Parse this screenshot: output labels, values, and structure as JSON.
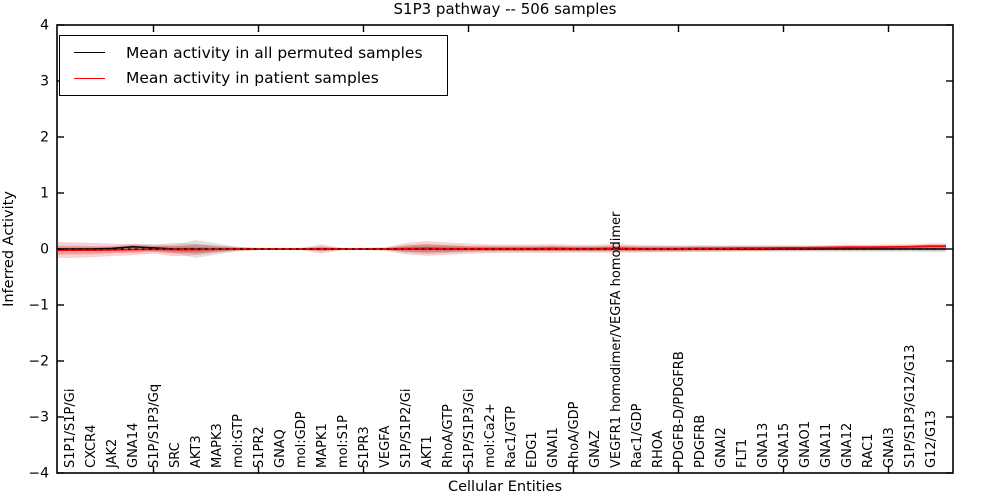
{
  "chart_data": {
    "type": "line",
    "title": "S1P3 pathway -- 506 samples",
    "xlabel": "Cellular Entities",
    "ylabel": "Inferred Activity",
    "ylim": [
      -4,
      4
    ],
    "yticks": [
      4,
      3,
      2,
      1,
      0,
      -1,
      -2,
      -3,
      -4
    ],
    "grid": false,
    "legend": {
      "position": "upper left",
      "entries": [
        {
          "label": "Mean activity in all permuted samples",
          "color": "#000000"
        },
        {
          "label": "Mean activity in patient samples",
          "color": "#ff0000"
        }
      ]
    },
    "categories": [
      "S1P1/S1P/Gi",
      "CXCR4",
      "JAK2",
      "GNA14",
      "S1P/S1P3/Gq",
      "SRC",
      "AKT3",
      "MAPK3",
      "mol:GTP",
      "S1PR2",
      "GNAQ",
      "mol:GDP",
      "MAPK1",
      "mol:S1P",
      "S1PR3",
      "VEGFA",
      "S1P/S1P2/Gi",
      "AKT1",
      "RhoA/GTP",
      "S1P/S1P3/Gi",
      "mol:Ca2+",
      "Rac1/GTP",
      "EDG1",
      "GNAI1",
      "RhoA/GDP",
      "GNAZ",
      "VEGFR1 homodimer/VEGFA homodimer",
      "Rac1/GDP",
      "RHOA",
      "PDGFB-D/PDGFRB",
      "PDGFRB",
      "GNAI2",
      "FLT1",
      "GNA13",
      "GNA15",
      "GNAO1",
      "GNA11",
      "GNA12",
      "RAC1",
      "GNAI3",
      "S1P/S1P3/G12/G13",
      "G12/G13"
    ],
    "series": [
      {
        "name": "Mean activity in all permuted samples",
        "color": "#000000",
        "values": [
          0,
          0,
          0.01,
          0.04,
          0.02,
          0,
          0,
          0,
          0,
          0,
          0,
          0,
          0,
          0,
          0,
          0,
          0,
          0,
          0,
          0,
          0,
          0,
          0,
          0,
          0,
          0,
          0,
          0,
          0,
          0,
          0,
          0,
          0,
          0,
          0,
          0,
          0,
          0,
          0,
          0,
          0,
          0
        ]
      },
      {
        "name": "Mean activity in patient samples",
        "color": "#ff0000",
        "values": [
          -0.02,
          -0.02,
          -0.015,
          -0.01,
          -0.005,
          -0.01,
          -0.01,
          -0.005,
          0,
          0,
          0,
          0,
          0,
          0,
          0,
          0,
          0.005,
          0.01,
          0.005,
          0.005,
          0.005,
          0.005,
          0.005,
          0.01,
          0.005,
          0.005,
          0.01,
          0.005,
          0.005,
          0.005,
          0.01,
          0.01,
          0.015,
          0.015,
          0.02,
          0.02,
          0.025,
          0.03,
          0.03,
          0.035,
          0.04,
          0.05
        ]
      }
    ],
    "bands": [
      {
        "name": "permuted-std",
        "color": "#777777",
        "half_widths": [
          0.03,
          0.03,
          0.04,
          0.05,
          0.06,
          0.07,
          0.16,
          0.1,
          0.04,
          0.02,
          0.015,
          0.015,
          0.03,
          0.015,
          0.015,
          0.02,
          0.06,
          0.09,
          0.07,
          0.05,
          0.05,
          0.05,
          0.05,
          0.05,
          0.05,
          0.05,
          0.05,
          0.05,
          0.05,
          0.05,
          0.05,
          0.05,
          0.05,
          0.05,
          0.05,
          0.05,
          0.05,
          0.05,
          0.05,
          0.05,
          0.05,
          0.055
        ]
      },
      {
        "name": "patient-std",
        "color": "#dd2c2c",
        "half_widths": [
          0.14,
          0.13,
          0.11,
          0.1,
          0.08,
          0.12,
          0.1,
          0.06,
          0.035,
          0.02,
          0.02,
          0.02,
          0.08,
          0.02,
          0.02,
          0.03,
          0.1,
          0.13,
          0.11,
          0.09,
          0.08,
          0.075,
          0.075,
          0.08,
          0.07,
          0.07,
          0.08,
          0.07,
          0.065,
          0.06,
          0.06,
          0.055,
          0.05,
          0.05,
          0.045,
          0.045,
          0.045,
          0.05,
          0.045,
          0.045,
          0.045,
          0.05
        ]
      }
    ],
    "zero_line": true,
    "x_major_tick_indices": [
      4,
      9,
      14,
      19,
      24,
      29,
      34,
      39
    ]
  }
}
